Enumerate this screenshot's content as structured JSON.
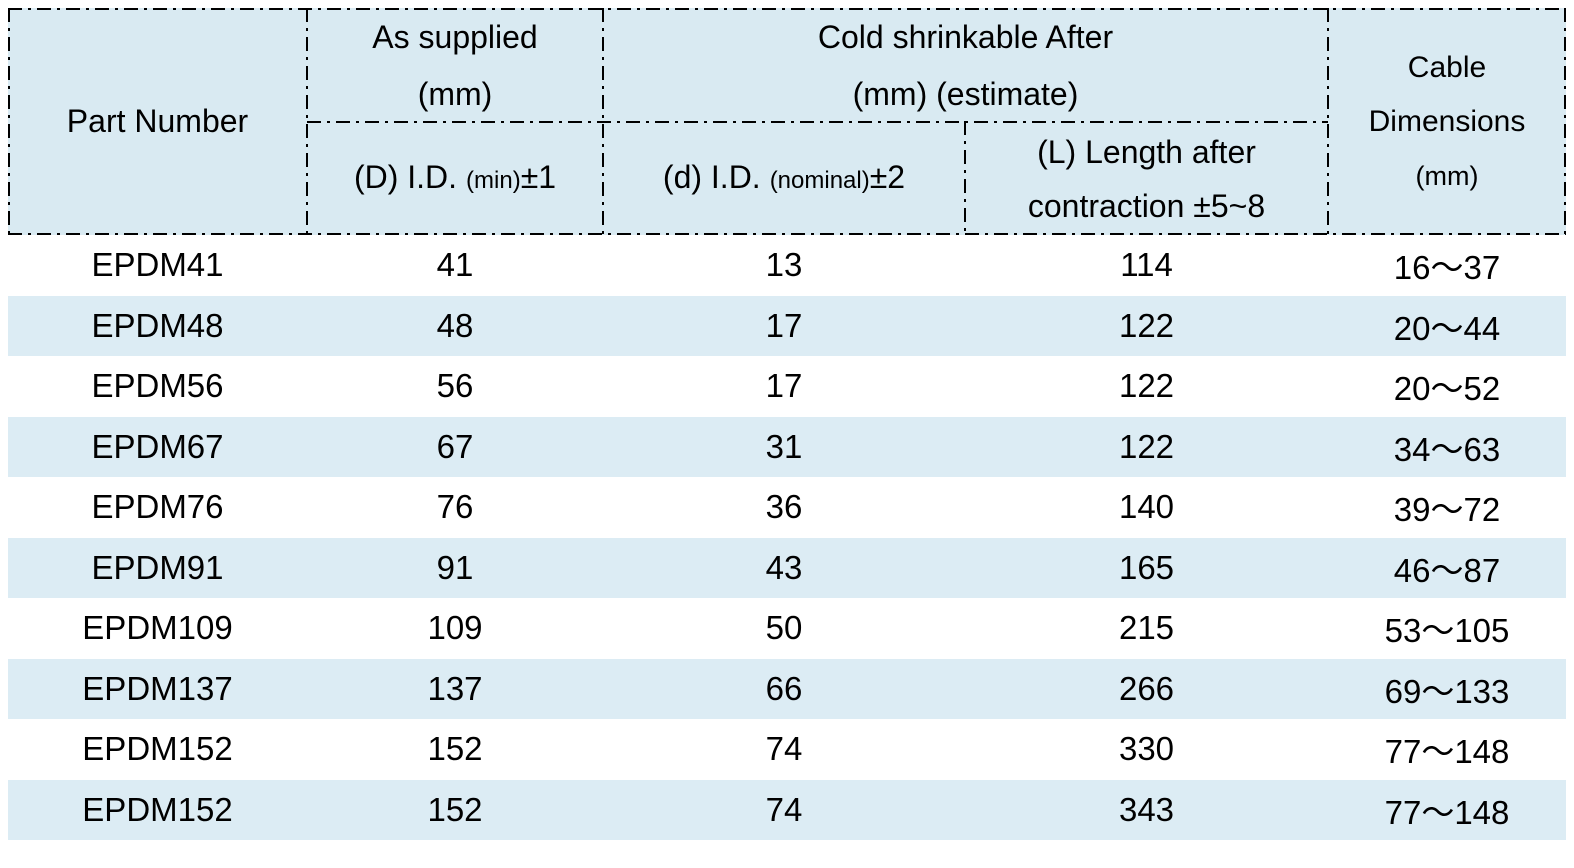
{
  "colors": {
    "header_bg": "#d9eaf2",
    "stripe_bg": "#dcecf4",
    "border": "#000000",
    "text": "#000000"
  },
  "header": {
    "part_number": "Part Number",
    "as_supplied": {
      "line1": "As supplied",
      "line2": "(mm)"
    },
    "cold_shrinkable": {
      "line1": "Cold shrinkable After",
      "line2": "(mm) (estimate)"
    },
    "d_id": {
      "main": "(D) I.D.",
      "small": "(min)",
      "tol": "±1"
    },
    "d_id_nominal": {
      "main": "(d) I.D.",
      "small": "(nominal)",
      "tol": "±2"
    },
    "length_after": {
      "line1": "(L) Length after",
      "line2": "contraction ±5~8"
    },
    "cable_dimensions": {
      "line1": "Cable",
      "line2": "Dimensions",
      "line3": "(mm)"
    }
  },
  "rows": [
    {
      "part": "EPDM41",
      "supplied_id": "41",
      "shrink_id": "13",
      "length": "114",
      "cable": "16～37"
    },
    {
      "part": "EPDM48",
      "supplied_id": "48",
      "shrink_id": "17",
      "length": "122",
      "cable": "20～44"
    },
    {
      "part": "EPDM56",
      "supplied_id": "56",
      "shrink_id": "17",
      "length": "122",
      "cable": "20～52"
    },
    {
      "part": "EPDM67",
      "supplied_id": "67",
      "shrink_id": "31",
      "length": "122",
      "cable": "34～63"
    },
    {
      "part": "EPDM76",
      "supplied_id": "76",
      "shrink_id": "36",
      "length": "140",
      "cable": "39～72"
    },
    {
      "part": "EPDM91",
      "supplied_id": "91",
      "shrink_id": "43",
      "length": "165",
      "cable": "46～87"
    },
    {
      "part": "EPDM109",
      "supplied_id": "109",
      "shrink_id": "50",
      "length": "215",
      "cable": "53～105"
    },
    {
      "part": "EPDM137",
      "supplied_id": "137",
      "shrink_id": "66",
      "length": "266",
      "cable": "69～133"
    },
    {
      "part": "EPDM152",
      "supplied_id": "152",
      "shrink_id": "74",
      "length": "330",
      "cable": "77～148"
    },
    {
      "part": "EPDM152",
      "supplied_id": "152",
      "shrink_id": "74",
      "length": "343",
      "cable": "77～148"
    }
  ]
}
